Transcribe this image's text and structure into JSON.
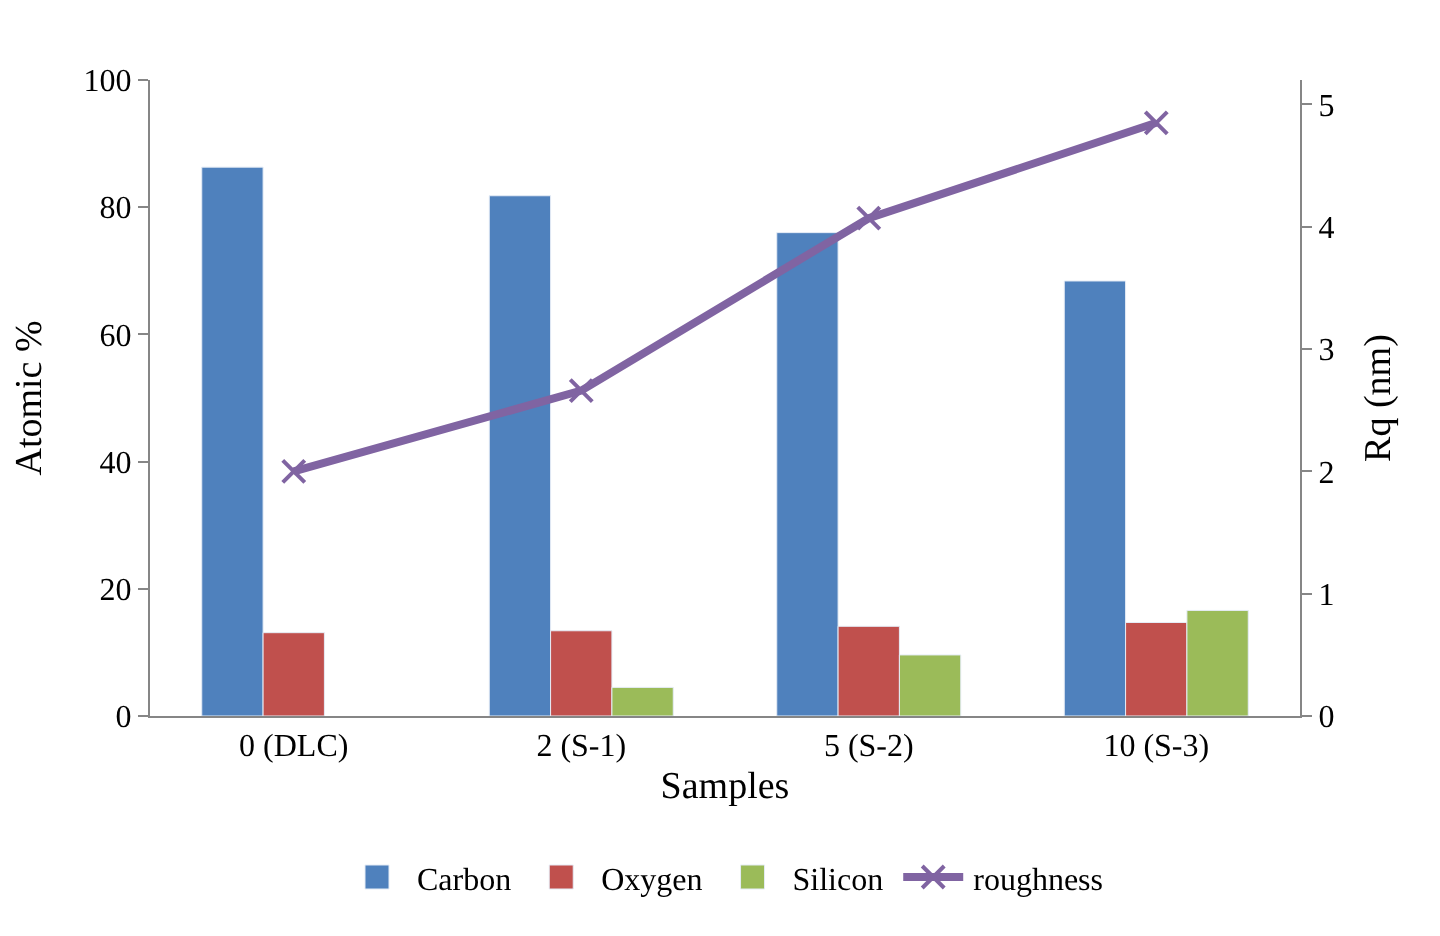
{
  "chart_data": {
    "type": "bar",
    "xlabel": "Samples",
    "ylabel": "Atomic %",
    "y2label": "Rq (nm)",
    "categories": [
      "0 (DLC)",
      "2 (S-1)",
      "5 (S-2)",
      "10 (S-3)"
    ],
    "series": [
      {
        "name": "Carbon",
        "color": "#4f81bd",
        "values": [
          86.3,
          81.8,
          76.0,
          68.4
        ]
      },
      {
        "name": "Oxygen",
        "color": "#c0504d",
        "values": [
          13.1,
          13.4,
          14.1,
          14.7
        ]
      },
      {
        "name": "Silicon",
        "color": "#9bbb59",
        "values": [
          null,
          4.5,
          9.6,
          16.6
        ]
      },
      {
        "name": "roughness",
        "color": "#8064a2",
        "values": [
          2.0,
          2.66,
          4.07,
          4.85
        ],
        "type": "line",
        "axis": "y2",
        "marker": "cross"
      }
    ],
    "ylim": [
      0,
      100
    ],
    "yticks": [
      0,
      20,
      40,
      60,
      80,
      100
    ],
    "y2lim": [
      0,
      5.2
    ],
    "y2ticks": [
      0,
      1,
      2,
      3,
      4,
      5
    ],
    "legend": "bottom"
  }
}
